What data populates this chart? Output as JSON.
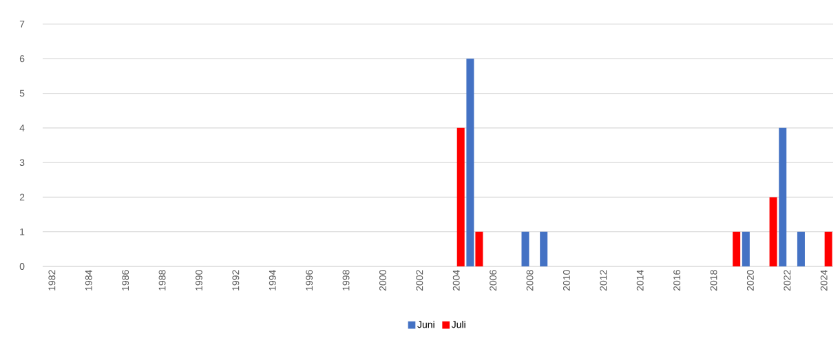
{
  "chart_data": {
    "type": "bar",
    "categories": [
      "1982",
      null,
      "1984",
      null,
      "1986",
      null,
      "1988",
      null,
      "1990",
      null,
      "1992",
      null,
      "1994",
      null,
      "1996",
      null,
      "1998",
      null,
      "2000",
      null,
      "2002",
      null,
      "2004",
      null,
      "2006",
      null,
      "2008",
      null,
      "2010",
      null,
      "2012",
      null,
      "2014",
      null,
      "2016",
      null,
      "2018",
      null,
      "2020",
      null,
      "2022",
      null,
      "2024"
    ],
    "series": [
      {
        "name": "Juni",
        "color": "#4472c4",
        "values": [
          0,
          0,
          0,
          0,
          0,
          0,
          0,
          0,
          0,
          0,
          0,
          0,
          0,
          0,
          0,
          0,
          0,
          0,
          0,
          0,
          0,
          0,
          0,
          6,
          0,
          0,
          1,
          1,
          0,
          0,
          0,
          0,
          0,
          0,
          0,
          0,
          0,
          0,
          1,
          0,
          4,
          1,
          0
        ]
      },
      {
        "name": "Juli",
        "color": "#ff0000",
        "values": [
          0,
          0,
          0,
          0,
          0,
          0,
          0,
          0,
          0,
          0,
          0,
          0,
          0,
          0,
          0,
          0,
          0,
          0,
          0,
          0,
          0,
          0,
          4,
          1,
          0,
          0,
          0,
          0,
          0,
          0,
          0,
          0,
          0,
          0,
          0,
          0,
          0,
          1,
          0,
          2,
          0,
          0,
          1
        ]
      }
    ],
    "ylim": [
      0,
      7
    ],
    "yticks": [
      0,
      1,
      2,
      3,
      4,
      5,
      6,
      7
    ],
    "grid": "y",
    "legend": "bottom"
  }
}
